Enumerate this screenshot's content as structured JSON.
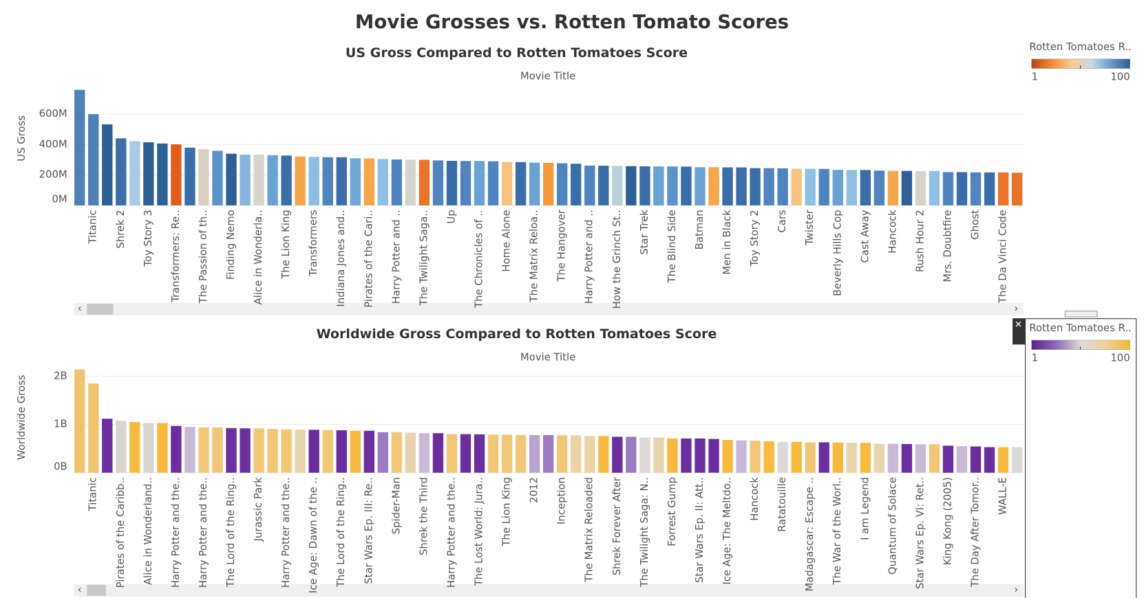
{
  "title": "Movie Grosses vs. Rotten Tomato Scores",
  "chart_data": [
    {
      "type": "bar",
      "title": "US Gross Compared to Rotten Tomatoes Score",
      "x_label": "Movie Title",
      "y_label": "US Gross",
      "categories": [
        null,
        "Titanic",
        null,
        "Shrek 2",
        null,
        "Toy Story 3",
        null,
        "Transformers: Re..",
        null,
        "The Passion of th..",
        null,
        "Finding Nemo",
        null,
        "Alice in Wonderla..",
        null,
        "The Lion King",
        null,
        "Transformers",
        null,
        "Indiana Jones and..",
        null,
        "Pirates of the Cari..",
        null,
        "Harry Potter and ..",
        null,
        "The Twilight Saga..",
        null,
        "Up",
        null,
        "The Chronicles of ..",
        null,
        "Home Alone",
        null,
        "The Matrix Reloa..",
        null,
        "The Hangover",
        null,
        "Harry Potter and ..",
        null,
        "How the Grinch St..",
        null,
        "Star Trek",
        null,
        "The Blind Side",
        null,
        "Batman",
        null,
        "Men in Black",
        null,
        "Toy Story 2",
        null,
        "Cars",
        null,
        "Twister",
        null,
        "Beverly Hills Cop",
        null,
        "Cast Away",
        null,
        "Hancock",
        null,
        "Rush Hour 2",
        null,
        "Mrs. Doubtfire",
        null,
        "Ghost",
        null,
        "The Da Vinci Code",
        null
      ],
      "values": [
        760000000,
        600000000,
        533000000,
        441000000,
        423000000,
        415000000,
        407000000,
        402000000,
        380000000,
        370000000,
        359000000,
        340000000,
        334000000,
        334000000,
        330000000,
        328000000,
        322000000,
        319000000,
        317000000,
        317000000,
        310000000,
        309000000,
        305000000,
        302000000,
        301000000,
        300000000,
        296000000,
        293000000,
        292000000,
        292000000,
        290000000,
        286000000,
        285000000,
        281000000,
        280000000,
        277000000,
        274000000,
        262000000,
        261000000,
        260000000,
        258000000,
        257000000,
        256000000,
        256000000,
        255000000,
        251000000,
        251000000,
        250000000,
        250000000,
        245000000,
        245000000,
        244000000,
        241000000,
        241000000,
        240000000,
        234000000,
        233000000,
        233000000,
        229000000,
        227000000,
        227000000,
        226000000,
        226000000,
        219000000,
        219000000,
        217000000,
        217000000,
        217000000,
        215000000
      ],
      "colors": [
        "#4f80b6",
        "#4f81b8",
        "#2e6096",
        "#3c6fa8",
        "#a8cce6",
        "#2e6096",
        "#2e6096",
        "#e35d1f",
        "#3a6ea8",
        "#d9cfc3",
        "#5b93c8",
        "#2e6096",
        "#85b5dc",
        "#d6d4cc",
        "#6aa2d4",
        "#3c6fa8",
        "#f5a64a",
        "#8dbde2",
        "#4f84bf",
        "#3c6fa8",
        "#6fa6d6",
        "#f5a64a",
        "#8fbfe3",
        "#4f84bf",
        "#d6d4cc",
        "#e8732a",
        "#4f84bf",
        "#3a6ea8",
        "#4f84bf",
        "#6aa2d4",
        "#4f84bf",
        "#f5c27f",
        "#3a6ea8",
        "#6aa2d4",
        "#f39a3e",
        "#4f84bf",
        "#3a6ea8",
        "#4f84bf",
        "#3a6ea8",
        "#bccfd8",
        "#2e6096",
        "#3a6ea8",
        "#6aa2d4",
        "#5b93c8",
        "#3a6ea8",
        "#6aa2d4",
        "#f5a64a",
        "#3a6ea8",
        "#3a6ea8",
        "#3a6ea8",
        "#4f84bf",
        "#4f84bf",
        "#f5c27f",
        "#8fbfe3",
        "#4f84bf",
        "#6aa2d4",
        "#8fbfe3",
        "#3a6ea8",
        "#4f84bf",
        "#f5a64a",
        "#2e6096",
        "#d6d4cc",
        "#8fbfe3",
        "#4f84bf",
        "#3a6ea8",
        "#4f84bf",
        "#3a6ea8",
        "#e8732a",
        "#e8732a"
      ],
      "ylim": [
        0,
        800000000
      ],
      "yticks": [
        {
          "value": 0,
          "label": "0M"
        },
        {
          "value": 200000000,
          "label": "200M"
        },
        {
          "value": 400000000,
          "label": "400M"
        },
        {
          "value": 600000000,
          "label": "600M"
        }
      ],
      "grid": true,
      "legend": {
        "title": "Rotten Tomatoes R..",
        "min": 1,
        "max": 100,
        "colors": [
          "#b9441c",
          "#f08a2e",
          "#f9c98a",
          "#c9dcea",
          "#6d9ccc",
          "#2b5a8f"
        ]
      }
    },
    {
      "type": "bar",
      "title": "Worldwide Gross Compared to Rotten Tomatoes Score",
      "x_label": "Movie Title",
      "y_label": "Worldwide Gross",
      "categories": [
        null,
        "Titanic",
        null,
        "Pirates of the Caribb..",
        null,
        "Alice in Wonderland..",
        null,
        "Harry Potter and the..",
        null,
        "Harry Potter and the..",
        null,
        "The Lord of the Ring..",
        null,
        "Jurassic Park",
        null,
        "Harry Potter and the..",
        null,
        "Ice Age: Dawn of the ..",
        null,
        "The Lord of the Ring..",
        null,
        "Star Wars Ep. III: Re..",
        null,
        "Spider-Man",
        null,
        "Shrek the Third",
        null,
        "Harry Potter and the..",
        null,
        "The Lost World: Jura..",
        null,
        "The Lion King",
        null,
        "2012",
        null,
        "Inception",
        null,
        "The Matrix Reloaded",
        null,
        "Shrek Forever After",
        null,
        "The Twilight Saga: N..",
        null,
        "Forrest Gump",
        null,
        "Star Wars Ep. II: Att..",
        null,
        "Ice Age: The Meltdo..",
        null,
        "Hancock",
        null,
        "Ratatouille",
        null,
        "Madagascar: Escape ..",
        null,
        "The War of the Worl..",
        null,
        "I am Legend",
        null,
        "Quantum of Solace",
        null,
        "Star Wars Ep. VI: Ret..",
        null,
        "King Kong (2005)",
        null,
        "The Day After Tomor..",
        null,
        "WALL-E",
        null
      ],
      "values": [
        2140000000,
        1850000000,
        1120000000,
        1080000000,
        1050000000,
        1030000000,
        1030000000,
        970000000,
        950000000,
        940000000,
        940000000,
        925000000,
        920000000,
        920000000,
        910000000,
        900000000,
        895000000,
        890000000,
        885000000,
        880000000,
        870000000,
        870000000,
        840000000,
        840000000,
        830000000,
        820000000,
        820000000,
        800000000,
        800000000,
        795000000,
        790000000,
        790000000,
        780000000,
        780000000,
        780000000,
        775000000,
        775000000,
        760000000,
        760000000,
        745000000,
        745000000,
        730000000,
        730000000,
        710000000,
        710000000,
        710000000,
        700000000,
        680000000,
        670000000,
        665000000,
        650000000,
        640000000,
        640000000,
        630000000,
        630000000,
        625000000,
        620000000,
        620000000,
        600000000,
        600000000,
        595000000,
        590000000,
        590000000,
        560000000,
        550000000,
        545000000,
        530000000,
        530000000,
        530000000
      ],
      "colors": [
        "#efc46e",
        "#efc46e",
        "#6a2f9c",
        "#d8d4d0",
        "#f7b940",
        "#d8d4d0",
        "#f7b940",
        "#6a2f9c",
        "#c9b9d7",
        "#f1c777",
        "#f1c777",
        "#6a2f9c",
        "#6a2f9c",
        "#f1c777",
        "#f1c777",
        "#f1c777",
        "#e7d3ad",
        "#6a2f9c",
        "#f1c777",
        "#6a2f9c",
        "#f7b940",
        "#6a2f9c",
        "#9b7cc0",
        "#f1c777",
        "#e7d3ad",
        "#c9b9d7",
        "#6a2f9c",
        "#f1c777",
        "#6a2f9c",
        "#6a2f9c",
        "#f1c777",
        "#f1c777",
        "#f1c777",
        "#b9a3d0",
        "#9b7cc0",
        "#f1c777",
        "#ecd3a5",
        "#ecd3a5",
        "#f7b940",
        "#6a2f9c",
        "#9b7cc0",
        "#ddd9d5",
        "#e7d3ad",
        "#f7b940",
        "#6a2f9c",
        "#6a2f9c",
        "#6a2f9c",
        "#f7b940",
        "#c9b9d7",
        "#f1c777",
        "#f7b940",
        "#ddd9d5",
        "#f7b940",
        "#f1c777",
        "#6a2f9c",
        "#f7b940",
        "#e7d3ad",
        "#f7b940",
        "#e7d3ad",
        "#c9b9d7",
        "#6a2f9c",
        "#c9b9d7",
        "#f1c777",
        "#6a2f9c",
        "#c9b9d7",
        "#6a2f9c",
        "#6a2f9c",
        "#f7b940",
        "#ddd9d5"
      ],
      "ylim": [
        0,
        2250000000
      ],
      "yticks": [
        {
          "value": 0,
          "label": "0B"
        },
        {
          "value": 1000000000,
          "label": "1B"
        },
        {
          "value": 2000000000,
          "label": "2B"
        }
      ],
      "grid": true,
      "legend": {
        "title": "Rotten Tomatoes R..",
        "min": 1,
        "max": 100,
        "colors": [
          "#5a1f8f",
          "#8c68b8",
          "#dcdad8",
          "#efd09a",
          "#f6b733"
        ]
      }
    }
  ]
}
